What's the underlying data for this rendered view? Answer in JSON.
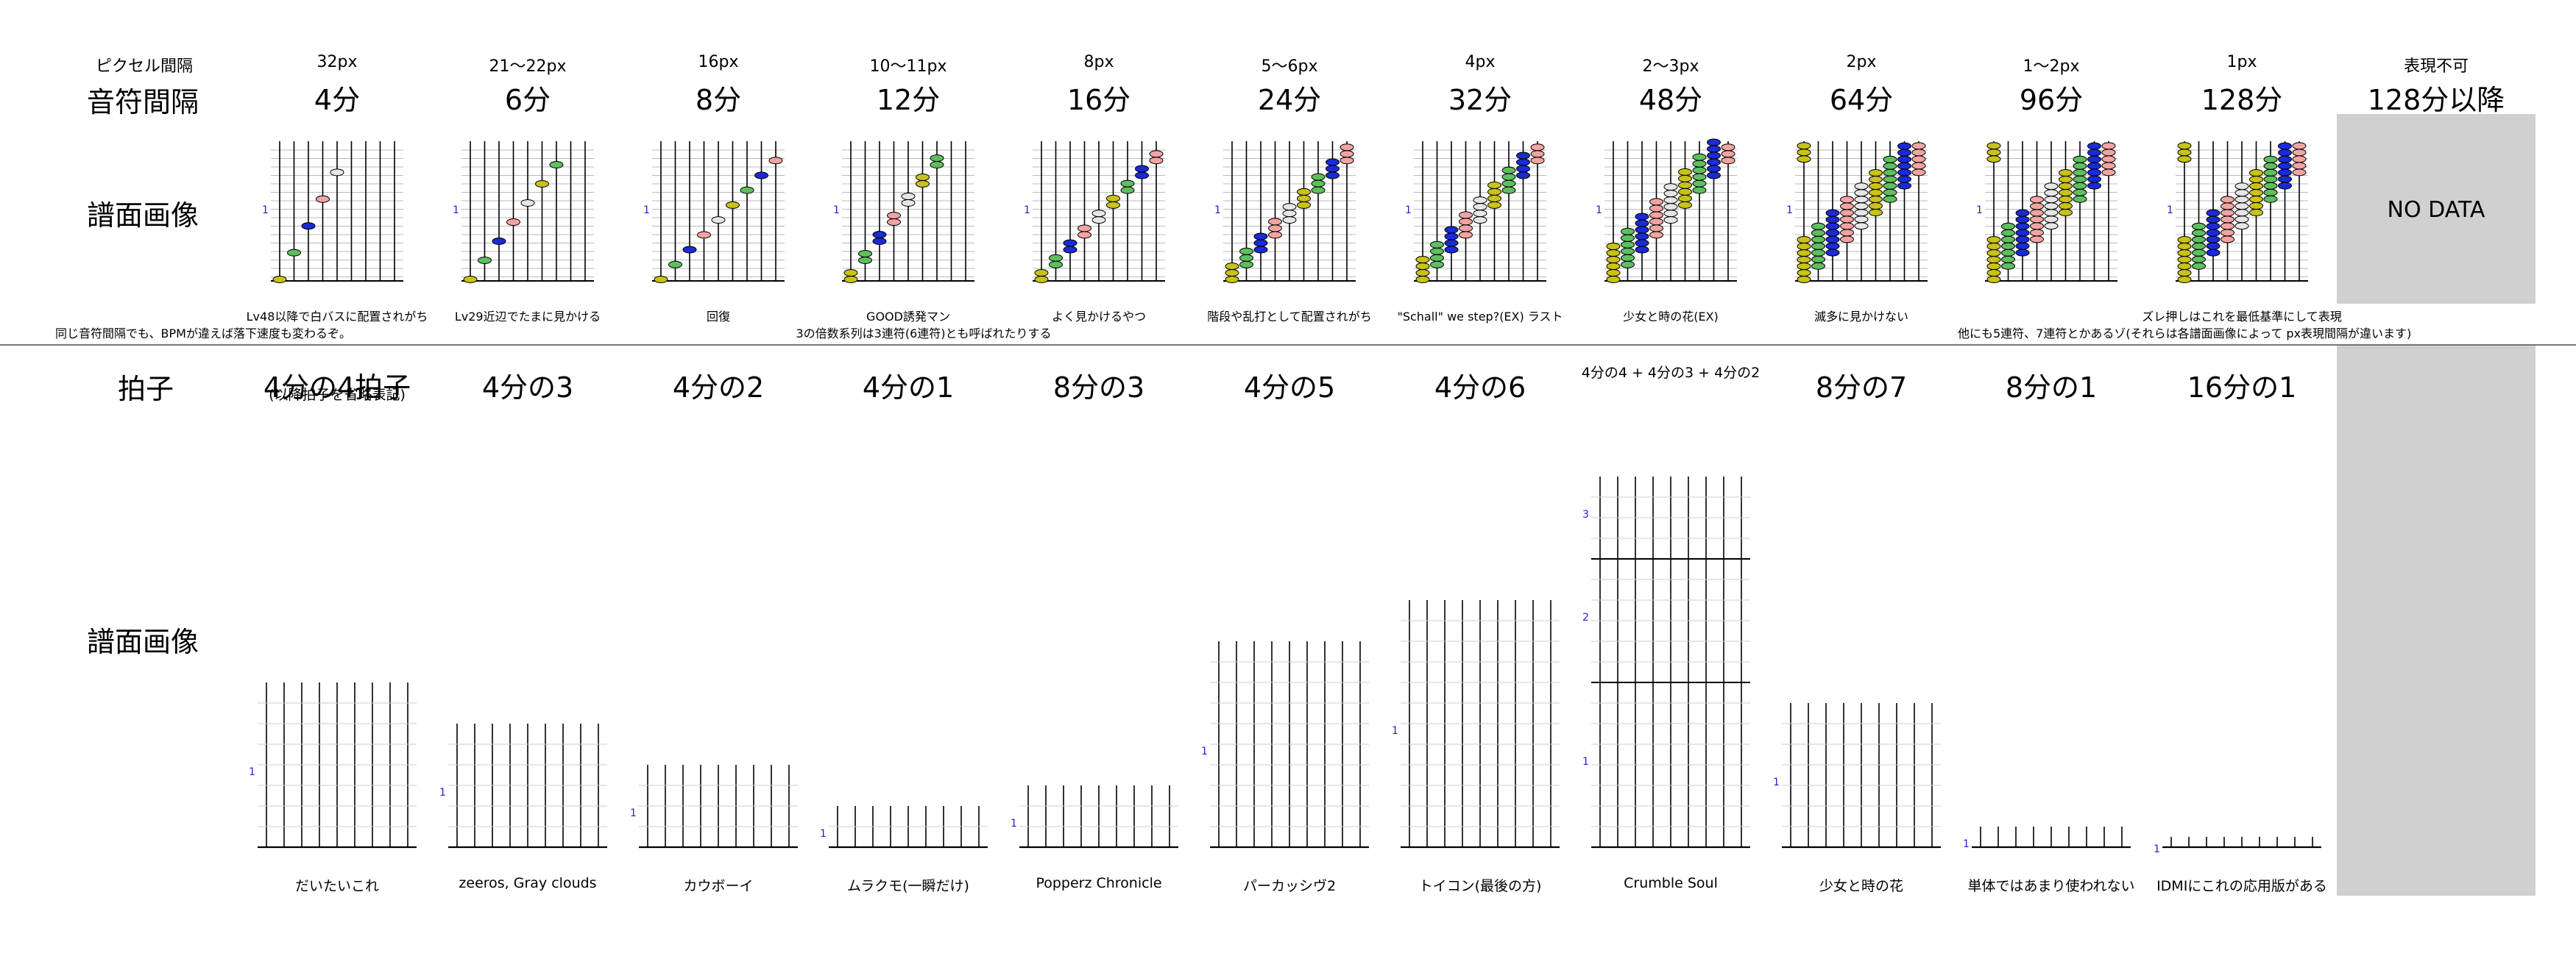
{
  "row1": {
    "header_pixel_label": "ピクセル間隔",
    "header_interval_label": "音符間隔",
    "image_label": "譜面画像",
    "columns": [
      {
        "px": "32px",
        "interval": "4分",
        "note": "Lv48以降で白バスに配置されがち",
        "steps": 4
      },
      {
        "px": "21〜22px",
        "interval": "6分",
        "note": "Lv29近辺でたまに見かける",
        "steps": 6
      },
      {
        "px": "16px",
        "interval": "8分",
        "note": "回復",
        "steps": 8
      },
      {
        "px": "10〜11px",
        "interval": "12分",
        "note": "GOOD誘発マン",
        "steps": 12
      },
      {
        "px": "8px",
        "interval": "16分",
        "note": "よく見かけるやつ",
        "steps": 16
      },
      {
        "px": "5〜6px",
        "interval": "24分",
        "note": "階段や乱打として配置されがち",
        "steps": 24
      },
      {
        "px": "4px",
        "interval": "32分",
        "note": "\"Schall\" we step?(EX) ラスト",
        "steps": 32
      },
      {
        "px": "2〜3px",
        "interval": "48分",
        "note": "少女と時の花(EX)",
        "steps": 48
      },
      {
        "px": "2px",
        "interval": "64分",
        "note": "滅多に見かけない",
        "steps": 64
      },
      {
        "px": "1〜2px",
        "interval": "96分",
        "note": "",
        "steps": 96
      },
      {
        "px": "1px",
        "interval": "128分",
        "note": "ズレ押しはこれを最低基準にして表現",
        "steps": 128
      }
    ],
    "last_column": {
      "px": "表現不可",
      "interval": "128分以降",
      "nodata": "NO DATA"
    },
    "footnote_left": "同じ音符間隔でも、BPMが違えば落下速度も変わるぞ。",
    "footnote_mid": "3の倍数系列は3連符(6連符)とも呼ばれたりする",
    "footnote_right": "他にも5連符、7連符とかあるゾ(それらは各譜面画像によって px表現間隔が違います)",
    "measure_number": "1"
  },
  "row2": {
    "header_label": "拍子",
    "image_label": "譜面画像",
    "columns": [
      {
        "sig": "4分の4拍子",
        "sub": "(以降拍子を省略表記)",
        "caption": "だいたいこれ",
        "beats": 4,
        "unit": 4
      },
      {
        "sig": "4分の3",
        "sub": "",
        "caption": "zeeros, Gray clouds",
        "beats": 3,
        "unit": 4
      },
      {
        "sig": "4分の2",
        "sub": "",
        "caption": "カウボーイ",
        "beats": 2,
        "unit": 4
      },
      {
        "sig": "4分の1",
        "sub": "",
        "caption": "ムラクモ(一瞬だけ)",
        "beats": 1,
        "unit": 4
      },
      {
        "sig": "8分の3",
        "sub": "",
        "caption": "Popperz Chronicle",
        "beats": 3,
        "unit": 8
      },
      {
        "sig": "4分の5",
        "sub": "",
        "caption": "パーカッシヴ2",
        "beats": 5,
        "unit": 4
      },
      {
        "sig": "4分の6",
        "sub": "",
        "caption": "トイコン(最後の方)",
        "beats": 6,
        "unit": 4
      },
      {
        "sig": "4分の4 + 4分の3 + 4分の2",
        "sub": "",
        "caption": "Crumble Soul",
        "beats": 9,
        "unit": 4
      },
      {
        "sig": "8分の7",
        "sub": "",
        "caption": "少女と時の花",
        "beats": 7,
        "unit": 8
      },
      {
        "sig": "8分の1",
        "sub": "",
        "caption": "単体ではあまり使われない",
        "beats": 1,
        "unit": 8
      },
      {
        "sig": "16分の1",
        "sub": "",
        "caption": "IDMIにこれの応用版がある",
        "beats": 1,
        "unit": 16
      }
    ],
    "crumble_measures": [
      "1",
      "2",
      "3"
    ]
  },
  "colors": {
    "white_note": "#e6e6e6",
    "blue_note": "#1a2bd6",
    "yellow_note": "#c9c219",
    "red_note": "#f2a3a3",
    "green_note": "#5fbf5f",
    "measure_number": "#2222cc",
    "panel_gray": "#d0d0d0"
  }
}
